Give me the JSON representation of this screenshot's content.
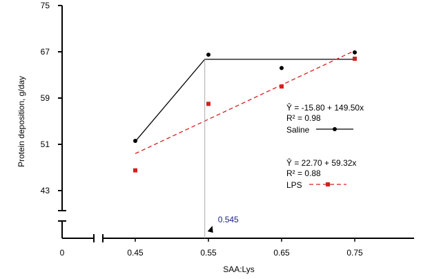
{
  "chart_data": {
    "type": "scatter",
    "xlabel": "SAA:Lys",
    "ylabel": "Protein deposition, g/day",
    "xlim": [
      0.35,
      0.8
    ],
    "ylim": [
      38,
      75
    ],
    "axis_break_x": true,
    "axis_break_y": true,
    "x_ticks": [
      {
        "value": 0,
        "label": "0"
      },
      {
        "value": 0.45,
        "label": "0.45"
      },
      {
        "value": 0.55,
        "label": "0.55"
      },
      {
        "value": 0.65,
        "label": "0.65"
      },
      {
        "value": 0.75,
        "label": "0.75"
      }
    ],
    "y_ticks": [
      {
        "value": 43,
        "label": "43"
      },
      {
        "value": 51,
        "label": "51"
      },
      {
        "value": 59,
        "label": "59"
      },
      {
        "value": 67,
        "label": "67"
      },
      {
        "value": 75,
        "label": "75"
      }
    ],
    "series": [
      {
        "name": "Saline",
        "color": "#000000",
        "marker": "circle",
        "x": [
          0.45,
          0.55,
          0.65,
          0.75
        ],
        "y": [
          51.6,
          66.5,
          64.2,
          66.9
        ],
        "fit": {
          "style": "broken-line",
          "points": [
            [
              0.45,
              51.5
            ],
            [
              0.545,
              65.7
            ],
            [
              0.75,
              65.7
            ]
          ]
        },
        "equation": "Ŷ  =  -15.80 + 149.50x",
        "r2": "R² = 0.98"
      },
      {
        "name": "LPS",
        "color": "#d42020",
        "marker": "square",
        "x": [
          0.45,
          0.55,
          0.65,
          0.75
        ],
        "y": [
          46.5,
          58.0,
          61.0,
          65.8
        ],
        "fit": {
          "style": "dashed-linear",
          "points": [
            [
              0.45,
              49.4
            ],
            [
              0.75,
              67.2
            ]
          ]
        },
        "equation": "Ŷ  =  22.70 + 59.32x",
        "r2": "R² =  0.88"
      }
    ],
    "breakpoint": {
      "value": 0.545,
      "label": "0.545",
      "color": "#1a237e"
    }
  }
}
